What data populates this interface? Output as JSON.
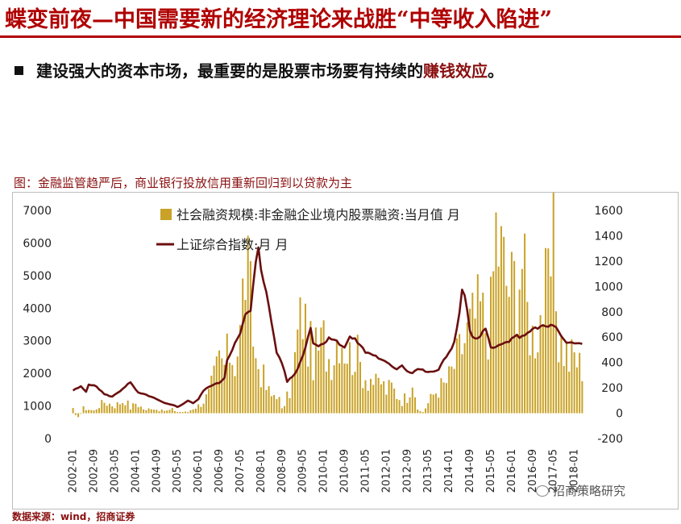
{
  "header": {
    "title": "蝶变前夜—中国需要新的经济理论来战胜“中等收入陷进”",
    "bullet_main": "建设强大的资本市场，最重要的是股票市场要有持续的",
    "bullet_accent": "赚钱效应",
    "bullet_end": "。"
  },
  "figure": {
    "caption": "图：金融监管趋严后，商业银行投放信用重新回归到以贷款为主",
    "source": "数据来源：wind，招商证券",
    "watermark": "招商策略研究"
  },
  "colors": {
    "bar": "#c9a227",
    "line": "#6b0f0f",
    "title": "#b00000",
    "accent": "#8a1010"
  },
  "chart_data": {
    "type": "bar+line",
    "x_tick_labels": [
      "2002-01",
      "2002-09",
      "2003-05",
      "2004-01",
      "2004-09",
      "2005-05",
      "2006-01",
      "2006-09",
      "2007-05",
      "2008-01",
      "2008-09",
      "2009-05",
      "2010-01",
      "2010-09",
      "2011-05",
      "2012-01",
      "2012-09",
      "2013-05",
      "2014-01",
      "2014-09",
      "2015-05",
      "2016-01",
      "2016-09",
      "2017-05",
      "2018-01"
    ],
    "y_left": {
      "ticks": [
        "0",
        "1000",
        "2000",
        "3000",
        "4000",
        "5000",
        "6000",
        "7000"
      ],
      "range": [
        0,
        7000
      ]
    },
    "y_right": {
      "ticks": [
        "-200",
        "0",
        "200",
        "400",
        "600",
        "800",
        "1000",
        "1200",
        "1400",
        "1600"
      ],
      "range": [
        -200,
        1600
      ]
    },
    "legend": [
      {
        "name": "社会融资规模:非金融企业境内股票融资:当月值 月",
        "kind": "bar"
      },
      {
        "name": "上证综合指数:月 月",
        "kind": "line"
      }
    ],
    "series_bar": {
      "name": "社会融资规模:非金融企业境内股票融资:当月值 月",
      "axis": "right",
      "anchors": [
        [
          0,
          30
        ],
        [
          2,
          -50
        ],
        [
          4,
          40
        ],
        [
          8,
          20
        ],
        [
          10,
          60
        ],
        [
          12,
          90
        ],
        [
          16,
          60
        ],
        [
          20,
          110
        ],
        [
          22,
          40
        ],
        [
          24,
          80
        ],
        [
          28,
          20
        ],
        [
          30,
          50
        ],
        [
          32,
          30
        ],
        [
          34,
          20
        ],
        [
          36,
          20
        ],
        [
          38,
          30
        ],
        [
          40,
          10
        ],
        [
          44,
          10
        ],
        [
          46,
          40
        ],
        [
          48,
          60
        ],
        [
          50,
          100
        ],
        [
          52,
          150
        ],
        [
          54,
          280
        ],
        [
          56,
          420
        ],
        [
          58,
          380
        ],
        [
          60,
          500
        ],
        [
          62,
          420
        ],
        [
          64,
          620
        ],
        [
          66,
          1200
        ],
        [
          68,
          850
        ],
        [
          70,
          420
        ],
        [
          72,
          350
        ],
        [
          74,
          200
        ],
        [
          76,
          130
        ],
        [
          78,
          180
        ],
        [
          80,
          30
        ],
        [
          82,
          120
        ],
        [
          84,
          250
        ],
        [
          86,
          600
        ],
        [
          88,
          820
        ],
        [
          90,
          560
        ],
        [
          92,
          450
        ],
        [
          94,
          500
        ],
        [
          96,
          580
        ],
        [
          98,
          450
        ],
        [
          100,
          500
        ],
        [
          102,
          700
        ],
        [
          104,
          550
        ],
        [
          106,
          460
        ],
        [
          108,
          500
        ],
        [
          110,
          380
        ],
        [
          112,
          300
        ],
        [
          114,
          290
        ],
        [
          116,
          220
        ],
        [
          118,
          250
        ],
        [
          120,
          180
        ],
        [
          122,
          210
        ],
        [
          124,
          150
        ],
        [
          126,
          100
        ],
        [
          128,
          140
        ],
        [
          130,
          300
        ],
        [
          132,
          20
        ],
        [
          134,
          10
        ],
        [
          136,
          80
        ],
        [
          138,
          150
        ],
        [
          140,
          200
        ],
        [
          142,
          220
        ],
        [
          144,
          280
        ],
        [
          146,
          380
        ],
        [
          148,
          480
        ],
        [
          150,
          580
        ],
        [
          152,
          680
        ],
        [
          154,
          750
        ],
        [
          156,
          820
        ],
        [
          158,
          700
        ],
        [
          160,
          780
        ],
        [
          162,
          1450
        ],
        [
          164,
          1250
        ],
        [
          166,
          1050
        ],
        [
          168,
          980
        ],
        [
          170,
          1100
        ],
        [
          172,
          1230
        ],
        [
          174,
          800
        ],
        [
          176,
          620
        ],
        [
          178,
          700
        ],
        [
          180,
          880
        ],
        [
          182,
          950
        ],
        [
          184,
          1280
        ],
        [
          186,
          600
        ],
        [
          188,
          520
        ],
        [
          190,
          420
        ],
        [
          192,
          460
        ],
        [
          194,
          380
        ]
      ],
      "noise": 0.45
    },
    "series_line": {
      "name": "上证综合指数:月 月",
      "axis": "right",
      "anchors": [
        [
          0,
          180
        ],
        [
          3,
          210
        ],
        [
          5,
          170
        ],
        [
          6,
          230
        ],
        [
          9,
          210
        ],
        [
          12,
          150
        ],
        [
          15,
          130
        ],
        [
          18,
          175
        ],
        [
          21,
          230
        ],
        [
          22,
          240
        ],
        [
          25,
          160
        ],
        [
          28,
          145
        ],
        [
          31,
          120
        ],
        [
          35,
          80
        ],
        [
          39,
          60
        ],
        [
          40,
          50
        ],
        [
          42,
          70
        ],
        [
          44,
          100
        ],
        [
          46,
          80
        ],
        [
          48,
          110
        ],
        [
          50,
          180
        ],
        [
          53,
          220
        ],
        [
          56,
          240
        ],
        [
          58,
          280
        ],
        [
          59,
          420
        ],
        [
          62,
          550
        ],
        [
          64,
          620
        ],
        [
          66,
          780
        ],
        [
          68,
          800
        ],
        [
          70,
          1200
        ],
        [
          71,
          1320
        ],
        [
          72,
          1150
        ],
        [
          73,
          1050
        ],
        [
          74,
          950
        ],
        [
          76,
          720
        ],
        [
          78,
          480
        ],
        [
          80,
          400
        ],
        [
          82,
          250
        ],
        [
          83,
          270
        ],
        [
          85,
          310
        ],
        [
          87,
          400
        ],
        [
          89,
          520
        ],
        [
          91,
          680
        ],
        [
          92,
          560
        ],
        [
          94,
          530
        ],
        [
          96,
          550
        ],
        [
          98,
          600
        ],
        [
          100,
          580
        ],
        [
          102,
          550
        ],
        [
          104,
          520
        ],
        [
          106,
          600
        ],
        [
          108,
          580
        ],
        [
          110,
          540
        ],
        [
          112,
          480
        ],
        [
          114,
          470
        ],
        [
          116,
          450
        ],
        [
          118,
          420
        ],
        [
          120,
          400
        ],
        [
          122,
          370
        ],
        [
          124,
          350
        ],
        [
          126,
          380
        ],
        [
          128,
          330
        ],
        [
          130,
          320
        ],
        [
          132,
          350
        ],
        [
          134,
          340
        ],
        [
          136,
          320
        ],
        [
          138,
          330
        ],
        [
          140,
          340
        ],
        [
          142,
          420
        ],
        [
          144,
          480
        ],
        [
          146,
          560
        ],
        [
          148,
          780
        ],
        [
          149,
          980
        ],
        [
          150,
          940
        ],
        [
          151,
          800
        ],
        [
          152,
          640
        ],
        [
          154,
          580
        ],
        [
          156,
          600
        ],
        [
          157,
          640
        ],
        [
          158,
          660
        ],
        [
          159,
          600
        ],
        [
          160,
          530
        ],
        [
          162,
          520
        ],
        [
          164,
          540
        ],
        [
          166,
          560
        ],
        [
          168,
          580
        ],
        [
          170,
          610
        ],
        [
          172,
          600
        ],
        [
          174,
          640
        ],
        [
          176,
          660
        ],
        [
          178,
          670
        ],
        [
          179,
          680
        ],
        [
          180,
          690
        ],
        [
          182,
          680
        ],
        [
          184,
          700
        ],
        [
          185,
          670
        ],
        [
          186,
          640
        ],
        [
          187,
          600
        ],
        [
          189,
          550
        ]
      ],
      "noise": 0.02
    },
    "n_months": 196
  }
}
